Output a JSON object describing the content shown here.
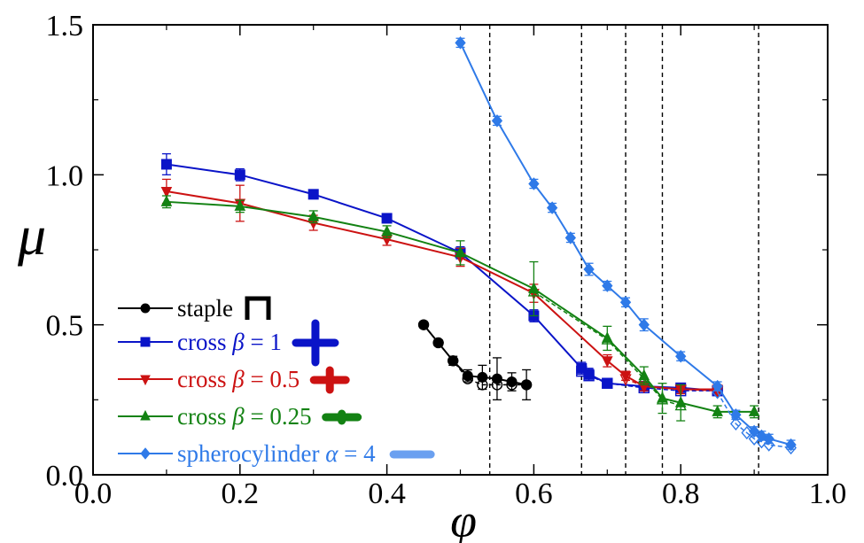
{
  "chart_data": {
    "type": "line",
    "title": "",
    "xlabel": "φ",
    "ylabel": "μ",
    "xlim": [
      0.0,
      1.0
    ],
    "ylim": [
      0.0,
      1.5
    ],
    "x_ticks": [
      "0.0",
      "0.2",
      "0.4",
      "0.6",
      "0.8",
      "1.0"
    ],
    "y_ticks": [
      "0.0",
      "0.5",
      "1.0",
      "1.5"
    ],
    "vertical_dashed_lines": [
      0.54,
      0.665,
      0.725,
      0.775,
      0.906
    ],
    "legend_position": "bottom-left",
    "series": [
      {
        "name": "staple",
        "legend_parts": [
          "staple"
        ],
        "color": "#000000",
        "marker": "circle",
        "x": [
          0.45,
          0.47,
          0.49,
          0.51,
          0.53,
          0.55,
          0.57,
          0.59
        ],
        "y": [
          0.5,
          0.44,
          0.38,
          0.33,
          0.325,
          0.32,
          0.31,
          0.3
        ],
        "err": [
          0.01,
          0.01,
          0.015,
          0.02,
          0.04,
          0.07,
          0.03,
          0.05
        ],
        "x_open": [
          0.45,
          0.47,
          0.49,
          0.51,
          0.53,
          0.55,
          0.57,
          0.59
        ],
        "y_open": [
          0.5,
          0.44,
          0.38,
          0.32,
          0.3,
          0.3,
          0.3,
          0.3
        ]
      },
      {
        "name": "cross β = 1",
        "legend_parts": [
          "cross ",
          "β",
          " = 1"
        ],
        "color": "#0a14c8",
        "marker": "square",
        "x": [
          0.1,
          0.2,
          0.3,
          0.4,
          0.5,
          0.6,
          0.665,
          0.675,
          0.7,
          0.75,
          0.8,
          0.85
        ],
        "y": [
          1.035,
          1.0,
          0.935,
          0.855,
          0.74,
          0.53,
          0.355,
          0.335,
          0.305,
          0.295,
          0.29,
          0.28
        ],
        "err": [
          0.035,
          0.02,
          0.015,
          0.015,
          0.02,
          0.02,
          0.02,
          0.02,
          0.015,
          0.015,
          0.015,
          0.015
        ],
        "x_open": [
          0.665,
          0.675,
          0.7,
          0.75,
          0.8,
          0.85
        ],
        "y_open": [
          0.345,
          0.33,
          0.305,
          0.29,
          0.28,
          0.28
        ]
      },
      {
        "name": "cross β = 0.5",
        "legend_parts": [
          "cross ",
          "β",
          " = 0.5"
        ],
        "color": "#cc1212",
        "marker": "triangle-down",
        "x": [
          0.1,
          0.2,
          0.3,
          0.4,
          0.5,
          0.6,
          0.7,
          0.725,
          0.75,
          0.8,
          0.85
        ],
        "y": [
          0.945,
          0.905,
          0.84,
          0.785,
          0.725,
          0.605,
          0.38,
          0.33,
          0.295,
          0.285,
          0.285
        ],
        "err": [
          0.04,
          0.06,
          0.025,
          0.02,
          0.03,
          0.03,
          0.02,
          0.015,
          0.015,
          0.015,
          0.015
        ],
        "x_open": [
          0.725,
          0.75,
          0.8,
          0.85
        ],
        "y_open": [
          0.32,
          0.295,
          0.285,
          0.28
        ]
      },
      {
        "name": "cross β = 0.25",
        "legend_parts": [
          "cross ",
          "β",
          " = 0.25"
        ],
        "color": "#138213",
        "marker": "triangle-up",
        "x": [
          0.1,
          0.2,
          0.3,
          0.4,
          0.5,
          0.6,
          0.7,
          0.75,
          0.775,
          0.8,
          0.85,
          0.9
        ],
        "y": [
          0.91,
          0.895,
          0.86,
          0.81,
          0.74,
          0.62,
          0.455,
          0.33,
          0.255,
          0.24,
          0.21,
          0.21
        ],
        "err": [
          0.02,
          0.02,
          0.02,
          0.02,
          0.04,
          0.09,
          0.04,
          0.03,
          0.05,
          0.06,
          0.02,
          0.02
        ],
        "x_open": [
          0.6,
          0.7,
          0.75,
          0.775,
          0.8
        ],
        "y_open": [
          0.61,
          0.45,
          0.32,
          0.25,
          0.23
        ]
      },
      {
        "name": "spherocylinder α = 4",
        "legend_parts": [
          "spherocylinder ",
          "α",
          " = 4"
        ],
        "color": "#2f7ae8",
        "marker": "diamond",
        "x": [
          0.5,
          0.55,
          0.6,
          0.625,
          0.65,
          0.675,
          0.7,
          0.725,
          0.75,
          0.8,
          0.85,
          0.875,
          0.9,
          0.91,
          0.92,
          0.95
        ],
        "y": [
          1.44,
          1.18,
          0.97,
          0.89,
          0.79,
          0.685,
          0.63,
          0.575,
          0.5,
          0.395,
          0.295,
          0.2,
          0.145,
          0.13,
          0.12,
          0.1
        ],
        "err": [
          0.015,
          0.015,
          0.015,
          0.015,
          0.015,
          0.02,
          0.015,
          0.015,
          0.02,
          0.015,
          0.015,
          0.015,
          0.015,
          0.015,
          0.015,
          0.015
        ],
        "x_open": [
          0.85,
          0.875,
          0.89,
          0.9,
          0.91,
          0.92,
          0.95
        ],
        "y_open": [
          0.275,
          0.17,
          0.14,
          0.12,
          0.11,
          0.1,
          0.09
        ]
      }
    ]
  }
}
